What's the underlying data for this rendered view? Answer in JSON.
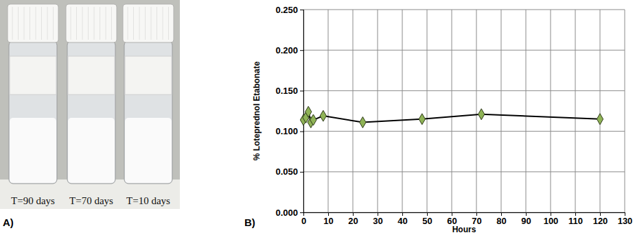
{
  "photo": {
    "panel_label": "A)",
    "captions": [
      "T=90 days",
      "T=70 days",
      "T=10 days"
    ]
  },
  "chart_data": {
    "type": "line",
    "panel_label": "B)",
    "x_label": "Hours",
    "y_label": "% Loteprednol Etabonate",
    "x": [
      0,
      1,
      2,
      3,
      4,
      8,
      24,
      48,
      72,
      120
    ],
    "values": [
      0.114,
      0.117,
      0.124,
      0.111,
      0.114,
      0.119,
      0.111,
      0.115,
      0.121,
      0.115
    ],
    "color": "#8fb356",
    "marker": "diamond",
    "line_style": "solid",
    "xlim": [
      0,
      130
    ],
    "xticks": [
      0,
      10,
      20,
      30,
      40,
      50,
      60,
      70,
      80,
      90,
      100,
      110,
      120,
      130
    ],
    "ylim": [
      0,
      0.25
    ],
    "yticks": [
      {
        "value": 0,
        "label": "0.000"
      },
      {
        "value": 0.05,
        "label": "0.050"
      },
      {
        "value": 0.1,
        "label": "0.100"
      },
      {
        "value": 0.15,
        "label": "0.150"
      },
      {
        "value": 0.2,
        "label": "0.200"
      },
      {
        "value": 0.25,
        "label": "0.250"
      }
    ],
    "grid": true
  }
}
